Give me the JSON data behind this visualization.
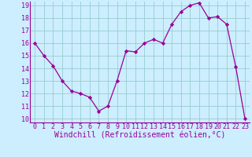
{
  "x": [
    0,
    1,
    2,
    3,
    4,
    5,
    6,
    7,
    8,
    9,
    10,
    11,
    12,
    13,
    14,
    15,
    16,
    17,
    18,
    19,
    20,
    21,
    22,
    23
  ],
  "y": [
    16.0,
    15.0,
    14.2,
    13.0,
    12.2,
    12.0,
    11.7,
    10.6,
    11.0,
    13.0,
    15.4,
    15.3,
    16.0,
    16.3,
    16.0,
    17.5,
    18.5,
    19.0,
    19.2,
    18.0,
    18.1,
    17.5,
    14.1,
    10.0
  ],
  "xlabel": "Windchill (Refroidissement éolien,°C)",
  "ylim_min": 9.7,
  "ylim_max": 19.3,
  "xlim_min": -0.5,
  "xlim_max": 23.5,
  "yticks": [
    10,
    11,
    12,
    13,
    14,
    15,
    16,
    17,
    18,
    19
  ],
  "xticks": [
    0,
    1,
    2,
    3,
    4,
    5,
    6,
    7,
    8,
    9,
    10,
    11,
    12,
    13,
    14,
    15,
    16,
    17,
    18,
    19,
    20,
    21,
    22,
    23
  ],
  "line_color": "#990099",
  "marker": "D",
  "marker_size": 2.2,
  "bg_color": "#cceeff",
  "grid_color": "#99cccc",
  "tick_label_fontsize": 6.0,
  "xlabel_fontsize": 7.0,
  "linewidth": 0.9
}
